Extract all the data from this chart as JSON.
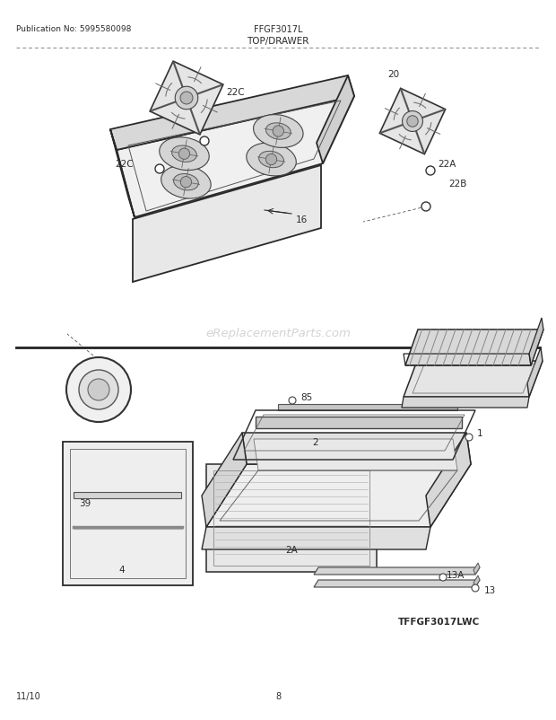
{
  "page_background": "#ffffff",
  "pub_no_text": "Publication No: 5995580098",
  "model_text": "FFGF3017L",
  "section_text": "TOP/DRAWER",
  "footer_left": "11/10",
  "footer_center": "8",
  "footer_model": "TFFGF3017LWC",
  "watermark": "eReplacementParts.com",
  "text_color": "#2a2a2a",
  "line_color": "#2a2a2a",
  "watermark_color": "#cccccc",
  "top_section": {
    "ymin": 0.525,
    "ymax": 0.945
  },
  "bottom_section": {
    "ymin": 0.085,
    "ymax": 0.505
  }
}
